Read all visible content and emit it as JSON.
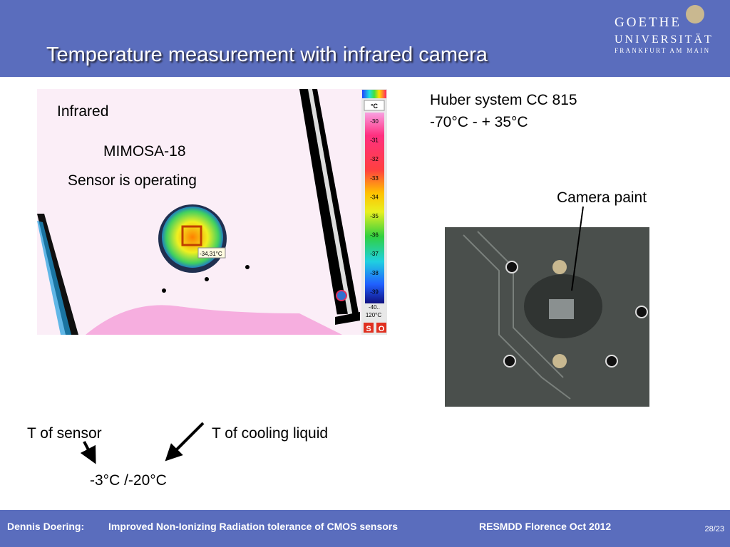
{
  "header": {
    "title": "Temperature measurement with infrared camera",
    "logo": [
      "GOETHE",
      "UNIVERSITÄT",
      "FRANKFURT AM MAIN"
    ]
  },
  "infrared_image": {
    "labels": [
      "Infrared",
      "MIMOSA-18",
      "Sensor is operating"
    ],
    "scale_unit": "°C",
    "scale_ticks": [
      "-30",
      "-31",
      "-32",
      "-33",
      "-34",
      "-35",
      "-36",
      "-37",
      "-38",
      "-39"
    ],
    "scale_range": [
      "-40..",
      "120°C"
    ],
    "reading": "-34,31°C",
    "buttons": [
      "S",
      "O"
    ]
  },
  "cooling": {
    "system": "Huber system CC 815",
    "range": "-70°C - + 35°C"
  },
  "photo": {
    "label": "Camera paint"
  },
  "annotations": {
    "sensor": "T of sensor",
    "liquid": "T of cooling liquid",
    "result": "-3°C /-20°C"
  },
  "footer": {
    "author": "Dennis Doering:",
    "talk": "Improved Non-Ionizing Radiation tolerance of CMOS sensors",
    "event": "RESMDD Florence Oct 2012",
    "page": "28/23"
  }
}
